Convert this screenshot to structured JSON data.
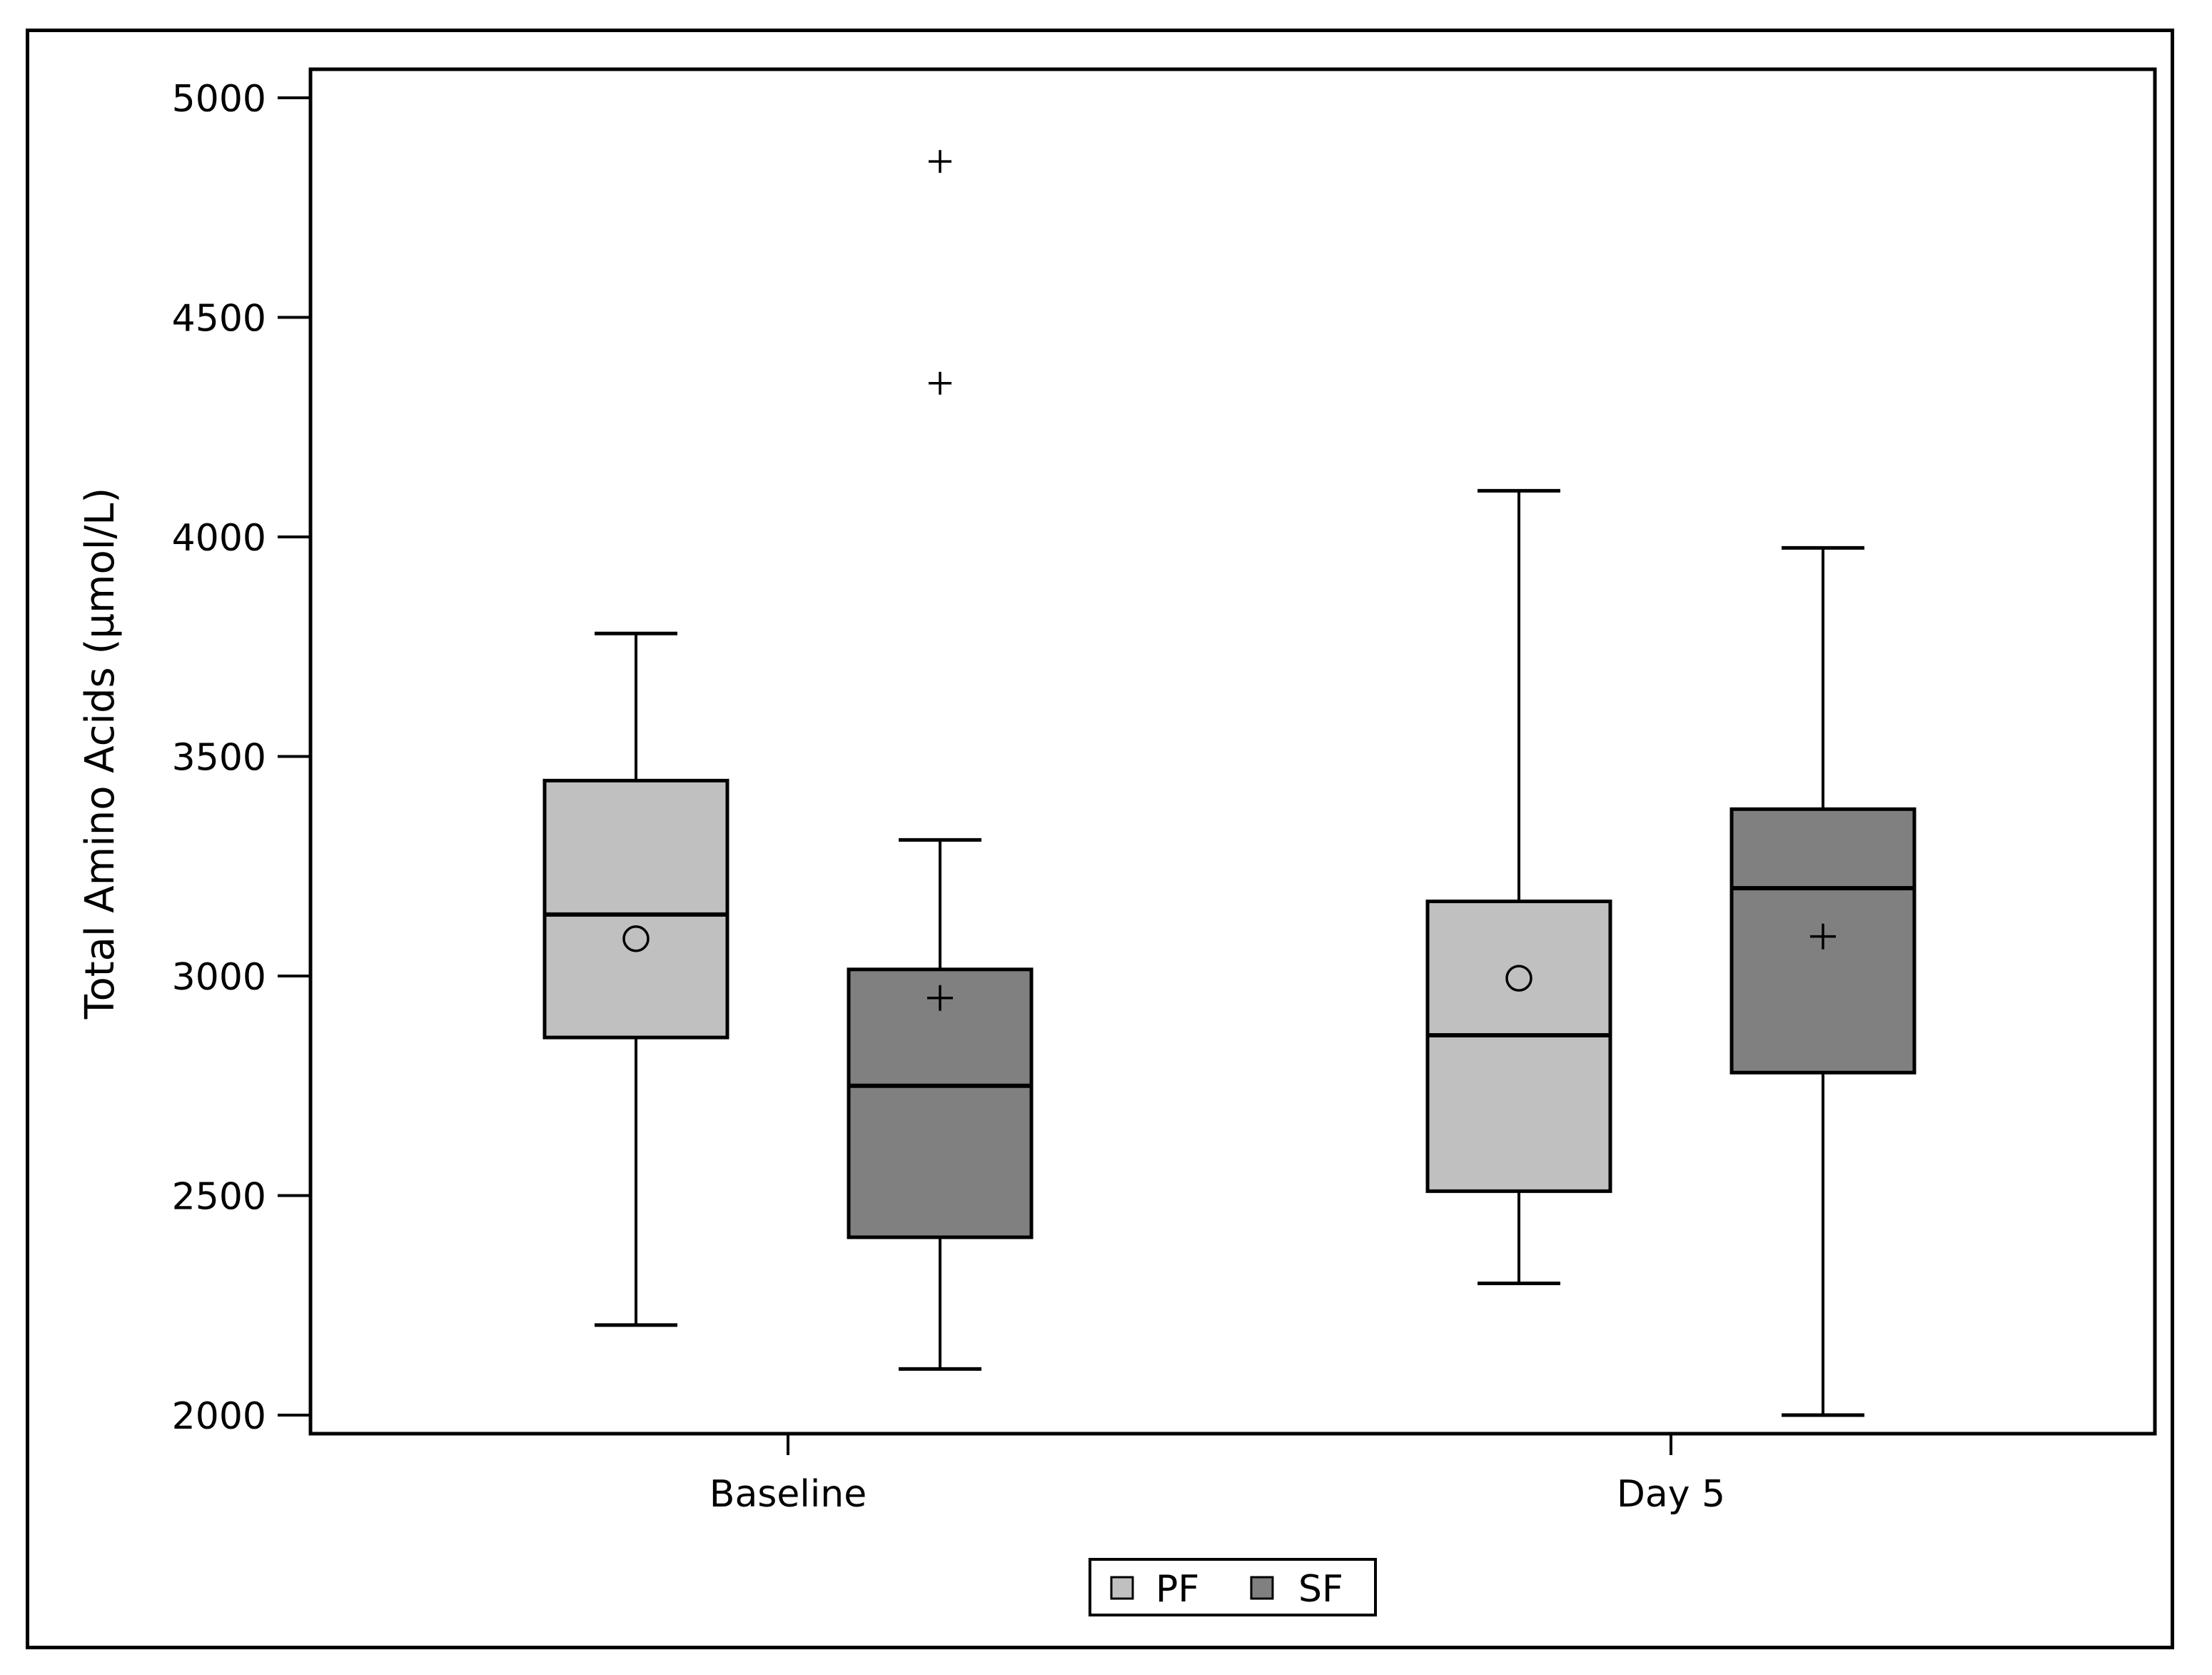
{
  "chart_data": {
    "type": "boxplot",
    "title": "",
    "xlabel": "",
    "ylabel": "Total Amino Acids (µmol/L)",
    "ylim": [
      2000,
      5000
    ],
    "yticks": [
      "5000",
      "4500",
      "4000",
      "3500",
      "3000",
      "2500",
      "2000"
    ],
    "ytick_values": [
      5000,
      4500,
      4000,
      3500,
      3000,
      2500,
      2000
    ],
    "categories": [
      "Baseline",
      "Day 5"
    ],
    "legend": {
      "position": "bottom-center"
    },
    "series": [
      {
        "name": "PF",
        "fill": "#c0c0c0",
        "mean_marker": "circle",
        "boxes": [
          {
            "category": "Baseline",
            "whisker_low": 2205,
            "q1": 2860,
            "median": 3140,
            "q3": 3445,
            "whisker_high": 3780,
            "mean": 3085,
            "outliers": []
          },
          {
            "category": "Day 5",
            "whisker_low": 2300,
            "q1": 2510,
            "median": 2865,
            "q3": 3170,
            "whisker_high": 4105,
            "mean": 2995,
            "outliers": []
          }
        ]
      },
      {
        "name": "SF",
        "fill": "#808080",
        "mean_marker": "plus",
        "boxes": [
          {
            "category": "Baseline",
            "whisker_low": 2105,
            "q1": 2405,
            "median": 2750,
            "q3": 3015,
            "whisker_high": 3310,
            "mean": 2950,
            "outliers": [
              4350,
              4855
            ]
          },
          {
            "category": "Day 5",
            "whisker_low": 2000,
            "q1": 2780,
            "median": 3200,
            "q3": 3380,
            "whisker_high": 3975,
            "mean": 3090,
            "outliers": []
          }
        ]
      }
    ]
  }
}
